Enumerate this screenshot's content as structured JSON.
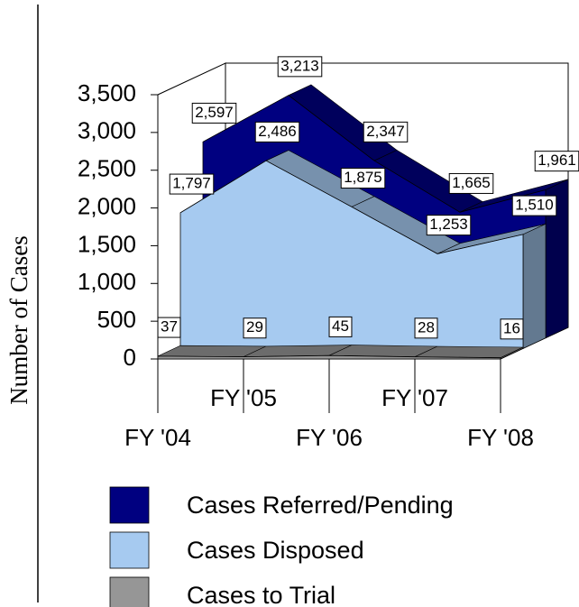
{
  "chart_data": {
    "type": "area3d",
    "ylabel": "Number of Cases",
    "categories": [
      "FY '04",
      "FY '05",
      "FY '06",
      "FY '07",
      "FY '08"
    ],
    "series": [
      {
        "name": "Cases Referred/Pending",
        "color": "#000080",
        "values": [
          2597,
          3213,
          2347,
          1665,
          1961
        ],
        "value_labels": [
          "2,597",
          "3,213",
          "2,347",
          "1,665",
          "1,961"
        ]
      },
      {
        "name": "Cases Disposed",
        "color": "#a6caf0",
        "values": [
          1797,
          2486,
          1875,
          1253,
          1510
        ],
        "value_labels": [
          "1,797",
          "2,486",
          "1,875",
          "1,253",
          "1,510"
        ]
      },
      {
        "name": "Cases to Trial",
        "color": "#969696",
        "values": [
          37,
          29,
          45,
          28,
          16
        ]
      }
    ],
    "ylim": [
      0,
      3500
    ],
    "yticks": [
      0,
      500,
      {
        "value": 1000,
        "label": "1,000"
      },
      {
        "value": 1500,
        "label": "1,500"
      },
      {
        "value": 2000,
        "label": "2,000"
      },
      {
        "value": 2500,
        "label": "2,500"
      },
      {
        "value": 3000,
        "label": "3,000"
      },
      {
        "value": 3500,
        "label": "3,500"
      }
    ]
  }
}
